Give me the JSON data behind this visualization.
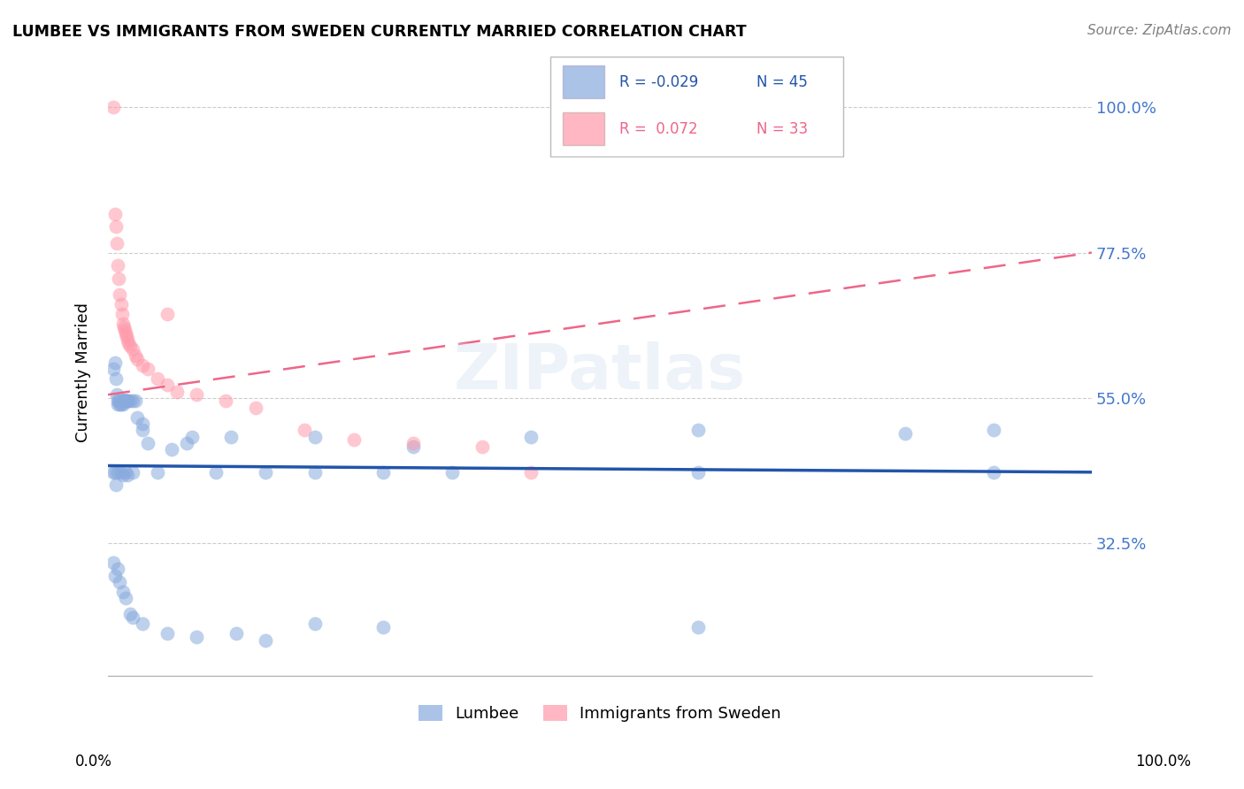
{
  "title": "LUMBEE VS IMMIGRANTS FROM SWEDEN CURRENTLY MARRIED CORRELATION CHART",
  "source": "Source: ZipAtlas.com",
  "ylabel": "Currently Married",
  "ytick_labels": [
    "100.0%",
    "77.5%",
    "55.0%",
    "32.5%"
  ],
  "ytick_values": [
    1.0,
    0.775,
    0.55,
    0.325
  ],
  "legend_label1": "Lumbee",
  "legend_label2": "Immigrants from Sweden",
  "color_blue": "#88AADD",
  "color_pink": "#FF99AA",
  "color_line_blue": "#2255AA",
  "color_line_pink": "#EE6688",
  "color_raxis": "#4477CC",
  "lumbee_x": [
    0.005,
    0.007,
    0.008,
    0.009,
    0.01,
    0.01,
    0.011,
    0.012,
    0.013,
    0.014,
    0.015,
    0.015,
    0.016,
    0.016,
    0.017,
    0.018,
    0.018,
    0.019,
    0.02,
    0.02,
    0.022,
    0.025,
    0.028,
    0.03,
    0.035,
    0.04,
    0.065,
    0.08,
    0.005,
    0.007,
    0.008,
    0.01,
    0.013,
    0.015,
    0.018,
    0.02,
    0.025,
    0.05,
    0.11,
    0.16,
    0.21,
    0.28,
    0.35,
    0.6,
    0.9
  ],
  "lumbee_y": [
    0.595,
    0.605,
    0.58,
    0.555,
    0.545,
    0.54,
    0.545,
    0.54,
    0.54,
    0.545,
    0.54,
    0.545,
    0.545,
    0.545,
    0.545,
    0.545,
    0.545,
    0.545,
    0.545,
    0.545,
    0.545,
    0.545,
    0.545,
    0.52,
    0.5,
    0.48,
    0.47,
    0.48,
    0.435,
    0.435,
    0.415,
    0.435,
    0.435,
    0.43,
    0.435,
    0.43,
    0.435,
    0.435,
    0.435,
    0.435,
    0.435,
    0.435,
    0.435,
    0.435,
    0.435
  ],
  "lumbee_low_x": [
    0.005,
    0.007,
    0.01,
    0.012,
    0.015,
    0.018,
    0.022,
    0.025,
    0.035,
    0.06,
    0.09,
    0.13,
    0.16,
    0.21,
    0.28,
    0.6
  ],
  "lumbee_low_y": [
    0.295,
    0.275,
    0.285,
    0.265,
    0.25,
    0.24,
    0.215,
    0.21,
    0.2,
    0.185,
    0.18,
    0.185,
    0.175,
    0.2,
    0.195,
    0.195
  ],
  "sweden_x": [
    0.005,
    0.007,
    0.008,
    0.009,
    0.01,
    0.011,
    0.012,
    0.013,
    0.014,
    0.015,
    0.016,
    0.017,
    0.018,
    0.019,
    0.02,
    0.021,
    0.022,
    0.025,
    0.028,
    0.03,
    0.035,
    0.04,
    0.05,
    0.06,
    0.07,
    0.09,
    0.12,
    0.15,
    0.2,
    0.25,
    0.31,
    0.38,
    0.43
  ],
  "sweden_y": [
    1.0,
    0.835,
    0.815,
    0.79,
    0.755,
    0.735,
    0.71,
    0.695,
    0.68,
    0.665,
    0.66,
    0.655,
    0.65,
    0.645,
    0.64,
    0.635,
    0.63,
    0.625,
    0.615,
    0.61,
    0.6,
    0.595,
    0.58,
    0.57,
    0.56,
    0.555,
    0.545,
    0.535,
    0.5,
    0.485,
    0.48,
    0.475,
    0.435
  ],
  "sweden_outlier_x": [
    0.06
  ],
  "sweden_outlier_y": [
    0.68
  ],
  "lumbee_mid_x": [
    0.035,
    0.085,
    0.125,
    0.21,
    0.31,
    0.43,
    0.6,
    0.81,
    0.9
  ],
  "lumbee_mid_y": [
    0.51,
    0.49,
    0.49,
    0.49,
    0.475,
    0.49,
    0.5,
    0.495,
    0.5
  ],
  "xlim": [
    0.0,
    1.0
  ],
  "ylim": [
    0.12,
    1.06
  ],
  "lumbee_trend_x": [
    0.0,
    1.0
  ],
  "lumbee_trend_y": [
    0.445,
    0.435
  ],
  "sweden_trend_x": [
    0.0,
    1.0
  ],
  "sweden_trend_y": [
    0.555,
    0.775
  ]
}
